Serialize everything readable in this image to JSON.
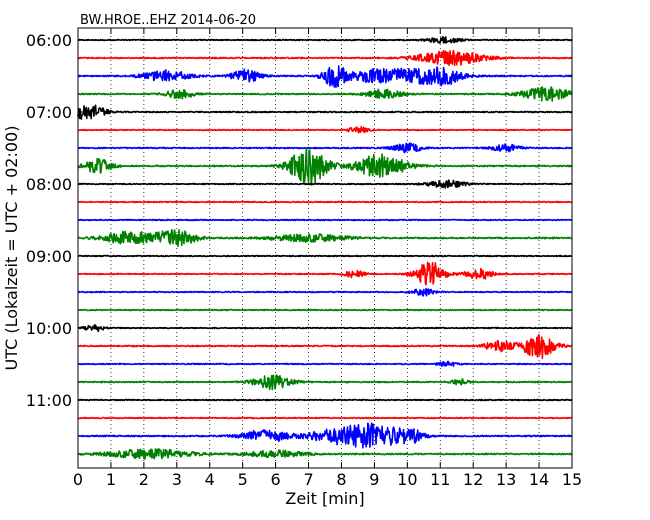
{
  "chart_data": {
    "type": "line",
    "title": "BW.HROE..EHZ 2014-06-20",
    "xlabel": "Zeit  [min]",
    "ylabel": "UTC (Lokalzeit = UTC + 02:00)",
    "xlim": [
      0,
      15
    ],
    "x_ticks": [
      "0",
      "1",
      "2",
      "3",
      "4",
      "5",
      "6",
      "7",
      "8",
      "9",
      "10",
      "11",
      "12",
      "13",
      "14",
      "15"
    ],
    "y_ticks": [
      {
        "label": "06:00",
        "trace": 0
      },
      {
        "label": "07:00",
        "trace": 4
      },
      {
        "label": "08:00",
        "trace": 8
      },
      {
        "label": "09:00",
        "trace": 12
      },
      {
        "label": "10:00",
        "trace": 16
      },
      {
        "label": "11:00",
        "trace": 20
      }
    ],
    "grid": "vertical-dotted",
    "color_cycle": [
      "#000000",
      "#ff0000",
      "#0000ff",
      "#008000"
    ],
    "traces": [
      {
        "start": "06:00",
        "noise": 0.35,
        "events": [
          [
            11.1,
            0.7,
            0.35
          ]
        ]
      },
      {
        "start": "06:15",
        "noise": 0.4,
        "events": [
          [
            11.3,
            1.6,
            0.7
          ]
        ]
      },
      {
        "start": "06:30",
        "noise": 0.45,
        "events": [
          [
            2.7,
            1.2,
            0.5
          ],
          [
            5.1,
            1.4,
            0.3
          ],
          [
            7.8,
            2.4,
            0.25
          ],
          [
            9.1,
            1.4,
            0.6
          ],
          [
            10.6,
            1.6,
            0.7
          ],
          [
            11.2,
            1.0,
            0.25
          ]
        ]
      },
      {
        "start": "06:45",
        "noise": 0.4,
        "events": [
          [
            3.1,
            1.0,
            0.3
          ],
          [
            9.3,
            1.0,
            0.4
          ],
          [
            14.2,
            1.6,
            0.5
          ]
        ]
      },
      {
        "start": "07:00",
        "noise": 0.4,
        "events": [
          [
            0.3,
            1.8,
            0.35
          ]
        ]
      },
      {
        "start": "07:15",
        "noise": 0.3,
        "events": [
          [
            8.5,
            0.8,
            0.2
          ]
        ]
      },
      {
        "start": "07:30",
        "noise": 0.4,
        "events": [
          [
            10.0,
            1.0,
            0.3
          ],
          [
            13.0,
            0.8,
            0.3
          ]
        ]
      },
      {
        "start": "07:45",
        "noise": 0.45,
        "events": [
          [
            0.6,
            1.6,
            0.3
          ],
          [
            7.0,
            4.2,
            0.4
          ],
          [
            9.2,
            2.6,
            0.55
          ]
        ]
      },
      {
        "start": "08:00",
        "noise": 0.35,
        "events": [
          [
            11.2,
            0.8,
            0.4
          ]
        ]
      },
      {
        "start": "08:15",
        "noise": 0.35,
        "events": []
      },
      {
        "start": "08:30",
        "noise": 0.35,
        "events": []
      },
      {
        "start": "08:45",
        "noise": 0.45,
        "events": [
          [
            1.6,
            1.4,
            0.6
          ],
          [
            3.0,
            1.8,
            0.4
          ],
          [
            7.0,
            0.8,
            0.8
          ]
        ]
      },
      {
        "start": "09:00",
        "noise": 0.35,
        "events": []
      },
      {
        "start": "09:15",
        "noise": 0.35,
        "events": [
          [
            8.4,
            0.8,
            0.2
          ],
          [
            10.7,
            2.8,
            0.3
          ],
          [
            12.2,
            1.2,
            0.3
          ]
        ]
      },
      {
        "start": "09:30",
        "noise": 0.35,
        "events": [
          [
            10.5,
            0.8,
            0.25
          ]
        ]
      },
      {
        "start": "09:45",
        "noise": 0.35,
        "events": []
      },
      {
        "start": "10:00",
        "noise": 0.35,
        "events": [
          [
            0.5,
            0.8,
            0.2
          ]
        ]
      },
      {
        "start": "10:15",
        "noise": 0.4,
        "events": [
          [
            12.8,
            1.2,
            0.3
          ],
          [
            14.0,
            2.8,
            0.35
          ]
        ]
      },
      {
        "start": "10:30",
        "noise": 0.35,
        "events": [
          [
            11.2,
            0.6,
            0.2
          ]
        ]
      },
      {
        "start": "10:45",
        "noise": 0.4,
        "events": [
          [
            5.9,
            1.6,
            0.4
          ],
          [
            11.6,
            0.6,
            0.2
          ]
        ]
      },
      {
        "start": "11:00",
        "noise": 0.35,
        "events": []
      },
      {
        "start": "11:15",
        "noise": 0.35,
        "events": []
      },
      {
        "start": "11:30",
        "noise": 0.45,
        "events": [
          [
            5.7,
            1.4,
            0.5
          ],
          [
            7.6,
            1.0,
            0.5
          ],
          [
            8.9,
            2.8,
            0.7
          ],
          [
            10.1,
            1.2,
            0.25
          ]
        ]
      },
      {
        "start": "11:45",
        "noise": 0.45,
        "events": [
          [
            2.2,
            1.0,
            0.9
          ],
          [
            6.0,
            0.8,
            0.6
          ]
        ]
      }
    ]
  }
}
